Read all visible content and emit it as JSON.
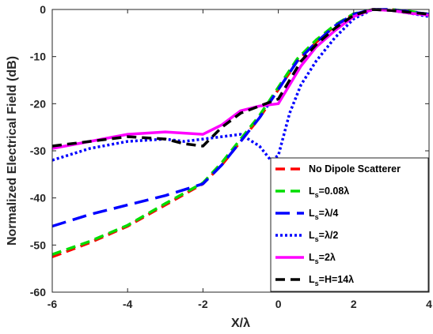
{
  "chart_data": {
    "type": "line",
    "title": "",
    "xlabel": "X/λ",
    "ylabel": "Normalized Electrical Field (dB)",
    "xlim": [
      -6,
      4
    ],
    "ylim": [
      -60,
      0
    ],
    "xticks": [
      "-6",
      "-4",
      "-2",
      "0",
      "2",
      "4"
    ],
    "yticks": [
      "0",
      "-10",
      "-20",
      "-30",
      "-40",
      "-50",
      "-60"
    ],
    "grid": false,
    "legend_position": "bottom-right",
    "series": [
      {
        "name": "No Dipole Scatterer",
        "legend_main": "No Dipole Scatterer",
        "legend_sub": "",
        "legend_tail": "",
        "color": "#ff0000",
        "dash": "dashed",
        "points": [
          [
            -6,
            -52.5
          ],
          [
            -5,
            -49.5
          ],
          [
            -4,
            -46
          ],
          [
            -3,
            -41.5
          ],
          [
            -2,
            -37
          ],
          [
            -1.5,
            -33
          ],
          [
            -1,
            -28
          ],
          [
            -0.5,
            -23
          ],
          [
            0,
            -17
          ],
          [
            0.5,
            -11
          ],
          [
            1,
            -7
          ],
          [
            1.5,
            -3.5
          ],
          [
            2,
            -1
          ],
          [
            2.5,
            0
          ],
          [
            3,
            0
          ],
          [
            3.5,
            -0.5
          ],
          [
            4,
            -1
          ]
        ]
      },
      {
        "name": "Ls=0.08λ",
        "legend_main": "L",
        "legend_sub": "s",
        "legend_tail": "=0.08λ",
        "color": "#00dd00",
        "dash": "dashed",
        "points": [
          [
            -6,
            -52
          ],
          [
            -5,
            -49.2
          ],
          [
            -4,
            -45.8
          ],
          [
            -3,
            -41.2
          ],
          [
            -2,
            -36.8
          ],
          [
            -1.5,
            -32.5
          ],
          [
            -1,
            -27.5
          ],
          [
            -0.5,
            -22.5
          ],
          [
            0,
            -16.5
          ],
          [
            0.5,
            -10.5
          ],
          [
            1,
            -6.5
          ],
          [
            1.5,
            -3.3
          ],
          [
            2,
            -0.9
          ],
          [
            2.5,
            0
          ],
          [
            3,
            0
          ],
          [
            3.5,
            -0.4
          ],
          [
            4,
            -1
          ]
        ]
      },
      {
        "name": "Ls=λ/4",
        "legend_main": "L",
        "legend_sub": "s",
        "legend_tail": "=λ/4",
        "color": "#0000ff",
        "dash": "longdash",
        "points": [
          [
            -6,
            -46
          ],
          [
            -5,
            -43.5
          ],
          [
            -4,
            -41.5
          ],
          [
            -3,
            -39.5
          ],
          [
            -2,
            -37
          ],
          [
            -1.5,
            -33
          ],
          [
            -1,
            -28
          ],
          [
            -0.5,
            -23
          ],
          [
            0,
            -17
          ],
          [
            0.5,
            -11
          ],
          [
            1,
            -7
          ],
          [
            1.5,
            -3.5
          ],
          [
            2,
            -1
          ],
          [
            2.5,
            0
          ],
          [
            3,
            0
          ],
          [
            3.5,
            -0.5
          ],
          [
            4,
            -1
          ]
        ]
      },
      {
        "name": "Ls=λ/2",
        "legend_main": "L",
        "legend_sub": "s",
        "legend_tail": "=λ/2",
        "color": "#0000ff",
        "dash": "dotted",
        "points": [
          [
            -6,
            -32
          ],
          [
            -5,
            -29.5
          ],
          [
            -4,
            -28
          ],
          [
            -3,
            -27.5
          ],
          [
            -2.5,
            -28
          ],
          [
            -2,
            -27.5
          ],
          [
            -1.5,
            -27
          ],
          [
            -1,
            -26.5
          ],
          [
            -0.5,
            -29
          ],
          [
            -0.2,
            -32
          ],
          [
            0,
            -31
          ],
          [
            0.3,
            -22
          ],
          [
            0.6,
            -16
          ],
          [
            1,
            -11
          ],
          [
            1.5,
            -6
          ],
          [
            2,
            -2
          ],
          [
            2.5,
            0
          ],
          [
            3,
            -0.2
          ],
          [
            3.5,
            -0.8
          ],
          [
            4,
            -1.5
          ]
        ]
      },
      {
        "name": "Ls=2λ",
        "legend_main": "L",
        "legend_sub": "s",
        "legend_tail": "=2λ",
        "color": "#ff00ff",
        "dash": "solid",
        "points": [
          [
            -6,
            -29.5
          ],
          [
            -5,
            -28
          ],
          [
            -4,
            -26.5
          ],
          [
            -3,
            -26
          ],
          [
            -2,
            -26.5
          ],
          [
            -1.5,
            -24.5
          ],
          [
            -1,
            -21.5
          ],
          [
            -0.5,
            -20.5
          ],
          [
            0,
            -20
          ],
          [
            0.3,
            -16
          ],
          [
            0.6,
            -12
          ],
          [
            1,
            -8
          ],
          [
            1.5,
            -4.5
          ],
          [
            2,
            -1.5
          ],
          [
            2.5,
            0
          ],
          [
            3,
            -0.2
          ],
          [
            3.5,
            -0.8
          ],
          [
            4,
            -1.2
          ]
        ]
      },
      {
        "name": "Ls=H=14λ",
        "legend_main": "L",
        "legend_sub": "s",
        "legend_tail": "=H=14λ",
        "color": "#000000",
        "dash": "dashed",
        "points": [
          [
            -6,
            -29
          ],
          [
            -5,
            -28
          ],
          [
            -4,
            -27
          ],
          [
            -3,
            -27.5
          ],
          [
            -2.5,
            -28.5
          ],
          [
            -2,
            -29
          ],
          [
            -1.5,
            -25
          ],
          [
            -1,
            -22
          ],
          [
            -0.5,
            -20.5
          ],
          [
            0,
            -19
          ],
          [
            0.3,
            -15
          ],
          [
            0.6,
            -11
          ],
          [
            1,
            -7.5
          ],
          [
            1.5,
            -4
          ],
          [
            2,
            -1.2
          ],
          [
            2.5,
            0
          ],
          [
            3,
            -0.2
          ],
          [
            3.5,
            -0.6
          ],
          [
            4,
            -1
          ]
        ]
      }
    ]
  }
}
